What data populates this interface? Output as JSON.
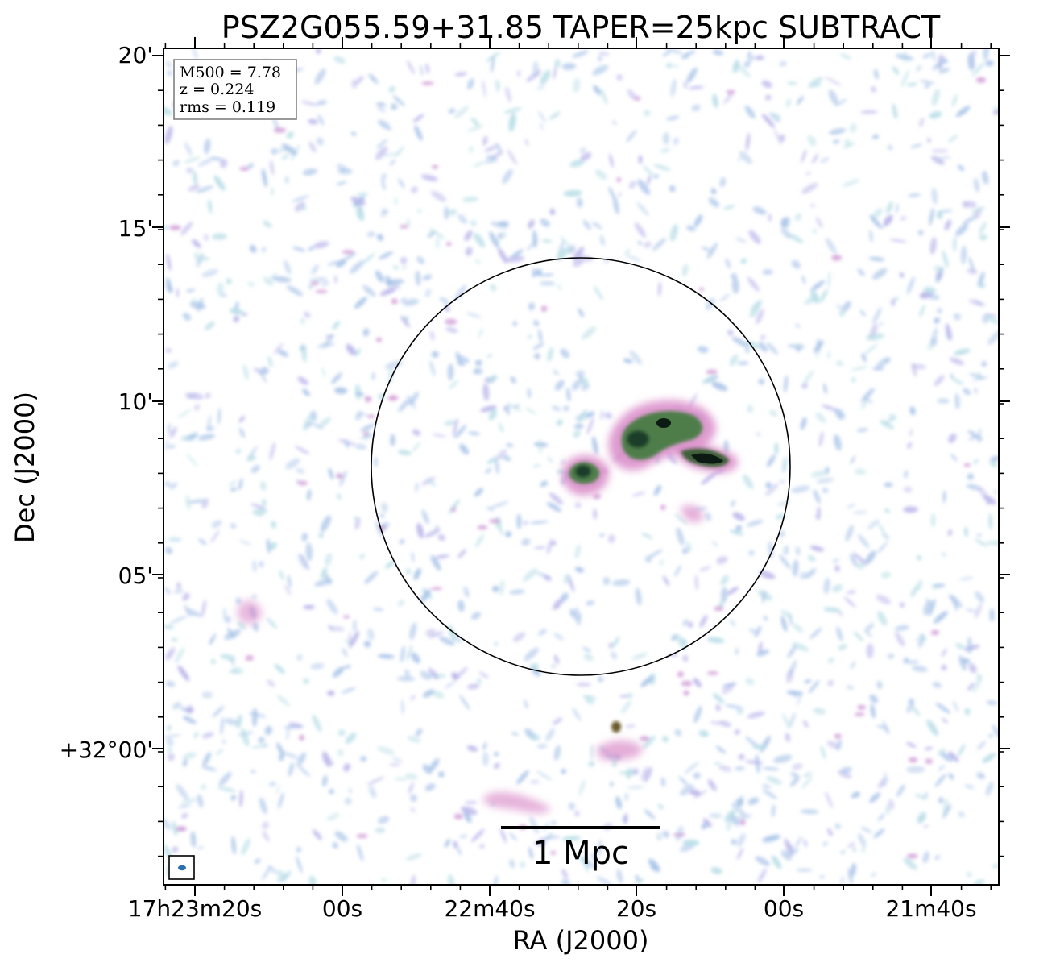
{
  "title": "PSZ2G055.59+31.85 TAPER=25kpc SUBTRACT",
  "info_box": {
    "m500": "M500 = 7.78",
    "z": "z = 0.224",
    "rms": "rms = 0.119"
  },
  "axes": {
    "xlabel": "RA (J2000)",
    "ylabel": "Dec (J2000)",
    "x_ticks": [
      "17h23m20s",
      "00s",
      "22m40s",
      "20s",
      "00s",
      "21m40s"
    ],
    "y_ticks": [
      "20'",
      "15'",
      "10'",
      "05'",
      "+32°00'"
    ]
  },
  "scale_bar": {
    "label": "1 Mpc"
  },
  "colors": {
    "background": "#ffffff",
    "noise_light": "#a9c4e8",
    "noise_cyan": "#b7dde6",
    "emission_pink": "#d98ac8",
    "emission_green": "#3f7a3a",
    "emission_dark": "#0b1a12",
    "beam": "#2a6fb0"
  }
}
